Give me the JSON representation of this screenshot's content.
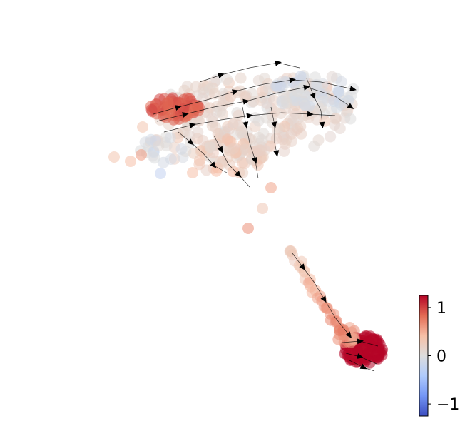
{
  "chart_data": {
    "type": "scatter",
    "title": "",
    "xlabel": "",
    "ylabel": "",
    "axes_visible": false,
    "grid": false,
    "overlay": "velocity-streamlines",
    "colormap": {
      "name": "coolwarm",
      "vmin": -1.25,
      "vmax": 1.25,
      "stops": [
        "#3b4cc0",
        "#7396f5",
        "#b0cbfc",
        "#dddddd",
        "#f6bfa6",
        "#e36a53",
        "#b40426"
      ]
    },
    "colorbar": {
      "placement": "bottom-right",
      "ticks": [
        {
          "value": 1,
          "label": "1"
        },
        {
          "value": 0,
          "label": "0"
        },
        {
          "value": -1,
          "label": "−1"
        }
      ]
    },
    "xlim": [
      -1.2,
      1.3
    ],
    "ylim": [
      -1.2,
      1.1
    ]
  }
}
